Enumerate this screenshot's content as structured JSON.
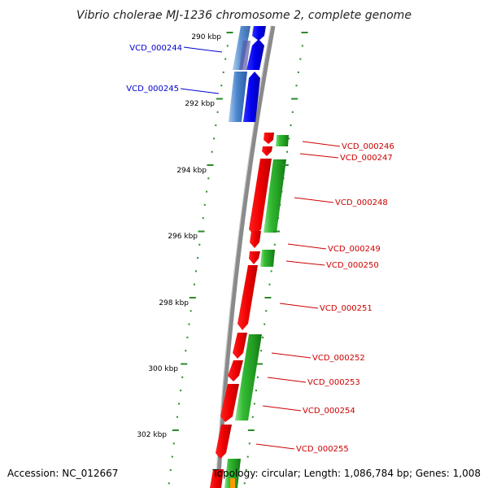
{
  "title": "Vibrio cholerae MJ-1236 chromosome 2, complete genome",
  "footer": {
    "accession": "Accession: NC_012667",
    "topology": "Topology: circular; Length: 1,086,784 bp; Genes: 1,008"
  },
  "scale_labels": [
    "290 kbp",
    "292 kbp",
    "294 kbp",
    "296 kbp",
    "298 kbp",
    "300 kbp",
    "302 kbp"
  ],
  "genes": [
    {
      "id": "VCD_000244",
      "strand": "reverse"
    },
    {
      "id": "VCD_000245",
      "strand": "reverse"
    },
    {
      "id": "VCD_000246",
      "strand": "forward"
    },
    {
      "id": "VCD_000247",
      "strand": "forward"
    },
    {
      "id": "VCD_000248",
      "strand": "forward"
    },
    {
      "id": "VCD_000249",
      "strand": "forward"
    },
    {
      "id": "VCD_000250",
      "strand": "forward"
    },
    {
      "id": "VCD_000251",
      "strand": "forward"
    },
    {
      "id": "VCD_000252",
      "strand": "forward"
    },
    {
      "id": "VCD_000253",
      "strand": "forward"
    },
    {
      "id": "VCD_000254",
      "strand": "forward"
    },
    {
      "id": "VCD_000255",
      "strand": "forward"
    }
  ],
  "colors": {
    "forward_gene": "#ff0000",
    "reverse_gene": "#0000ff",
    "forward_label": "#cc0000",
    "reverse_label": "#0000cc",
    "cog_forward": "#33bb33",
    "cog_reverse": "#4477cc",
    "backbone": "#888888",
    "tick_marks": "#2a8a2a"
  }
}
